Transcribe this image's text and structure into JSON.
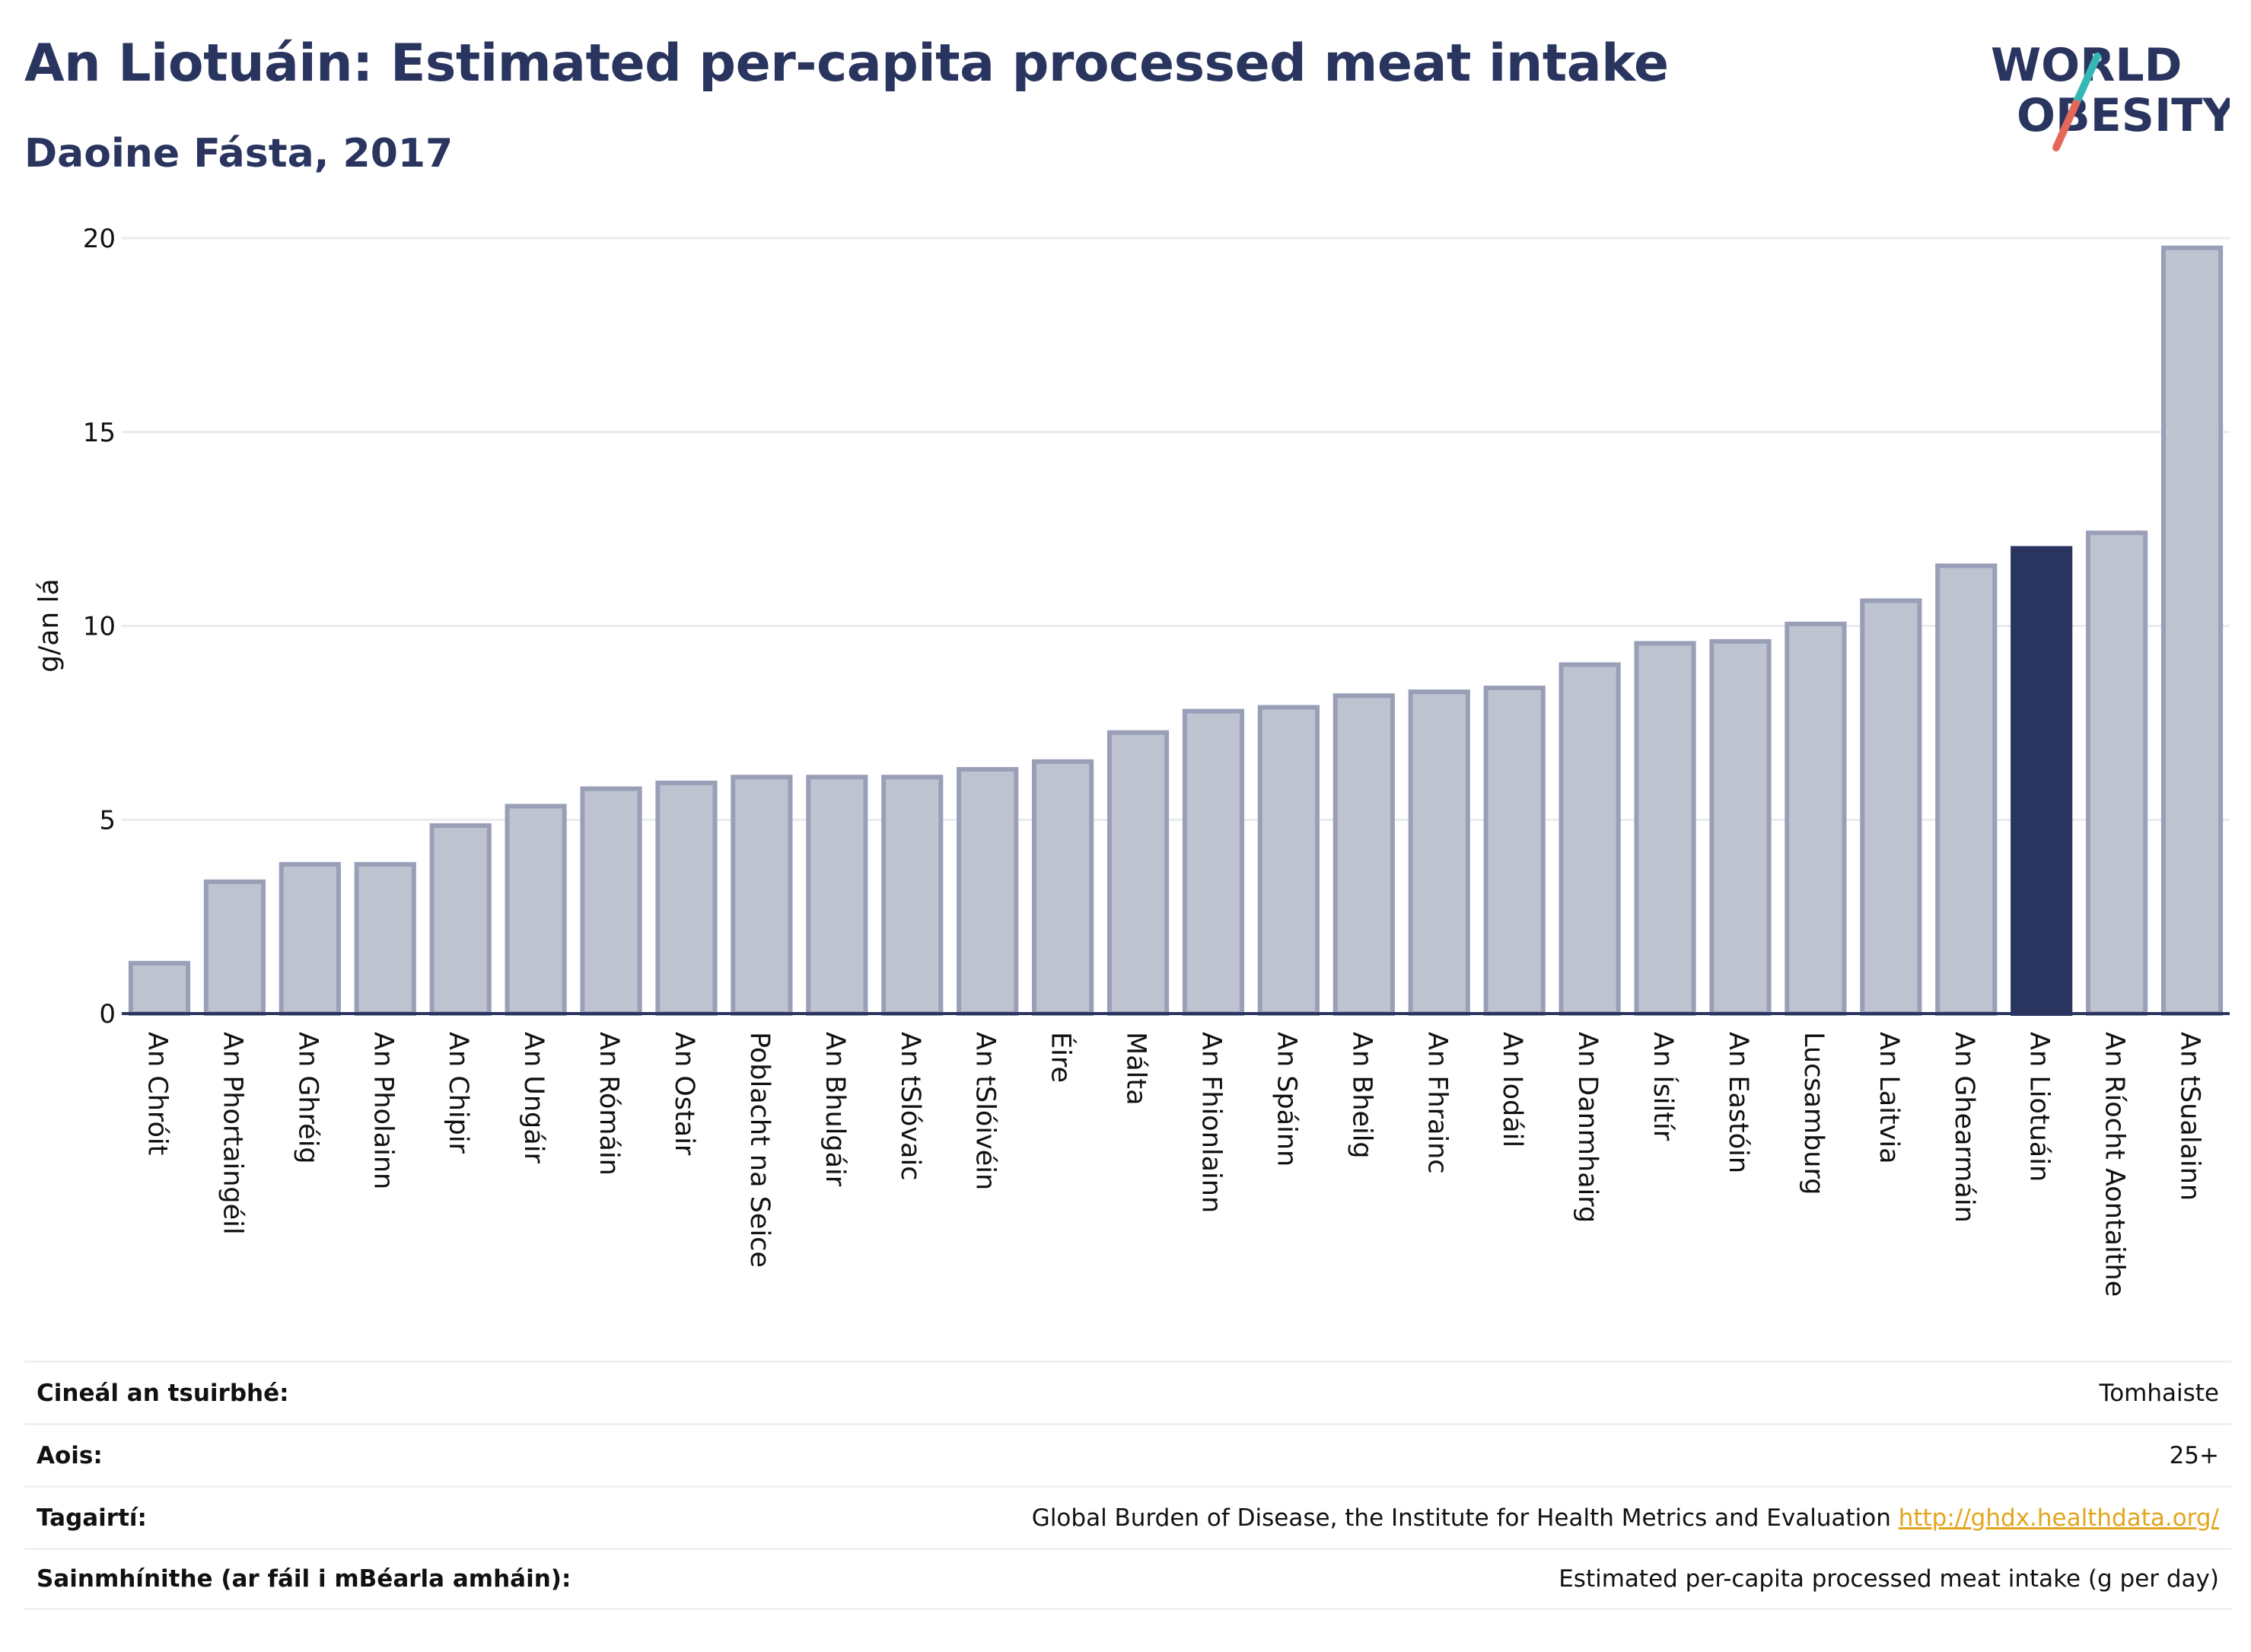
{
  "header": {
    "title": "An Liotuáin: Estimated per-capita processed meat intake",
    "subtitle": "Daoine Fásta, 2017"
  },
  "logo": {
    "line1": "WORLD",
    "line2": "OBESITY"
  },
  "colors": {
    "bar": "#bfc3d0",
    "bar_border": "#9a9fb8",
    "highlight": "#2a355f",
    "axis": "#2a355f",
    "grid": "#e9ebee",
    "logo_teal": "#34b7b5",
    "logo_red": "#e4685a"
  },
  "chart_data": {
    "type": "bar",
    "ylabel": "g/an lá",
    "xlabel": "",
    "ylim": [
      0,
      20
    ],
    "yticks": [
      0,
      5,
      10,
      15,
      20
    ],
    "grid": true,
    "highlight": "An Liotuáin",
    "categories": [
      "An Chróit",
      "An Phortaingéil",
      "An Ghréig",
      "An Pholainn",
      "An Chipir",
      "An Ungáir",
      "An Rómáin",
      "An Ostair",
      "Poblacht na Seice",
      "An Bhulgáir",
      "An tSlóvaic",
      "An tSlóivéin",
      "Éire",
      "Málta",
      "An Fhionlainn",
      "An Spáinn",
      "An Bheilg",
      "An Fhrainc",
      "An Iodáil",
      "An Danmhairg",
      "An Ísiltír",
      "An Eastóin",
      "Lucsamburg",
      "An Laitvia",
      "An Ghearmáin",
      "An Liotuáin",
      "An Ríocht Aontaithe",
      "An tSualainn"
    ],
    "values": [
      1.3,
      3.4,
      3.85,
      3.85,
      4.85,
      5.35,
      5.8,
      5.95,
      6.1,
      6.1,
      6.1,
      6.3,
      6.5,
      7.25,
      7.8,
      7.9,
      8.2,
      8.3,
      8.4,
      9.0,
      9.55,
      9.6,
      10.05,
      10.65,
      11.55,
      12.0,
      12.4,
      19.75
    ]
  },
  "meta": [
    {
      "label": "Cineál an tsuirbhé:",
      "value": "Tomhaiste"
    },
    {
      "label": "Aois:",
      "value": "25+"
    },
    {
      "label": "Tagairtí:",
      "value": "Global Burden of Disease, the Institute for Health Metrics and Evaluation",
      "link": "http://ghdx.healthdata.org/"
    },
    {
      "label": "Sainmhínithe (ar fáil i mBéarla amháin):",
      "value": "Estimated per-capita processed meat intake (g per day)"
    }
  ]
}
